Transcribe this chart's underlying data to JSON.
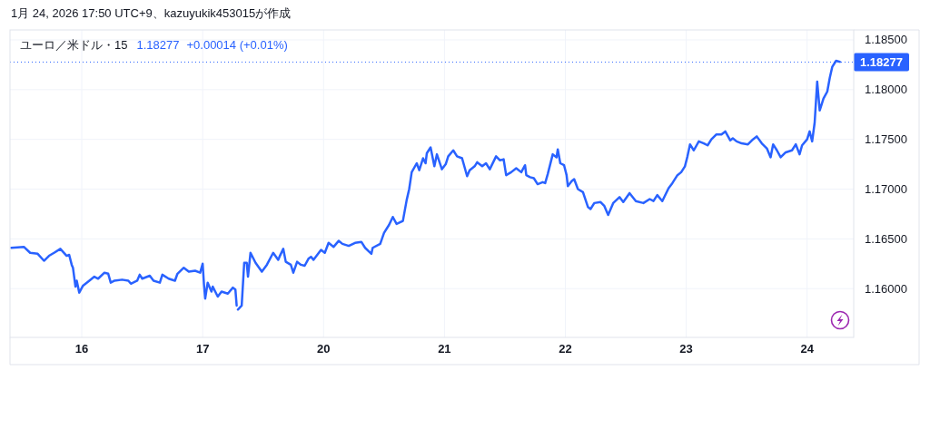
{
  "chart_data": [
    {
      "type": "line",
      "title": "1月 24, 2026 17:50 UTC+9、kazuyukik453015が作成",
      "subtitle": "ユーロ／米ドル・15",
      "annotations": [
        "1.18277",
        "+0.00014 (+0.01%)"
      ],
      "xlim": [
        "2026-01-15T09:45",
        "2026-01-17T07:00"
      ],
      "ylim": [
        1.1551,
        1.186
      ],
      "xticks": [
        {
          "value": "2026-01-16",
          "label": "16"
        },
        {
          "value": "2026-01-17",
          "label": "17"
        }
      ],
      "yticks": [
        {
          "value": 1.16,
          "label": null
        },
        {
          "value": 1.165,
          "label": null
        },
        {
          "value": 1.17,
          "label": null
        },
        {
          "value": 1.175,
          "label": null
        },
        {
          "value": 1.18,
          "label": null
        },
        {
          "value": 1.185,
          "label": null
        }
      ],
      "tick_labels": "x",
      "grid": true,
      "ref_lines": [
        {
          "axis": "y",
          "value": 1.18277,
          "color": "#2962ff",
          "line_style": "dotted"
        }
      ],
      "series": [
        {
          "color": "#2962ff",
          "x": [
            "2026-01-15T10:00",
            "2026-01-15T12:30",
            "2026-01-15T13:45",
            "2026-01-15T15:15",
            "2026-01-15T16:30",
            "2026-01-15T17:30",
            "2026-01-15T18:30",
            "2026-01-15T19:45",
            "2026-01-15T21:00",
            "2026-01-15T21:30",
            "2026-01-15T22:00",
            "2026-01-15T22:15",
            "2026-01-15T22:45",
            "2026-01-15T23:00",
            "2026-01-15T23:30",
            "2026-01-16T00:15",
            "2026-01-16T01:30",
            "2026-01-16T02:30",
            "2026-01-16T03:15",
            "2026-01-16T04:30",
            "2026-01-16T05:15",
            "2026-01-16T05:45",
            "2026-01-16T06:30",
            "2026-01-16T08:00",
            "2026-01-16T09:15",
            "2026-01-16T09:45",
            "2026-01-16T11:00",
            "2026-01-16T11:30",
            "2026-01-16T12:00",
            "2026-01-16T13:30",
            "2026-01-16T14:15",
            "2026-01-16T15:30",
            "2026-01-16T16:00",
            "2026-01-16T17:15",
            "2026-01-16T18:30",
            "2026-01-16T19:00",
            "2026-01-16T20:15",
            "2026-01-16T21:15",
            "2026-01-16T22:30",
            "2026-01-16T23:30",
            "2026-01-17T00:00",
            "2026-01-17T00:15",
            "2026-01-17T00:30",
            "2026-01-17T01:00",
            "2026-01-17T01:45",
            "2026-01-17T02:00",
            "2026-01-17T03:00",
            "2026-01-17T03:45",
            "2026-01-17T05:00",
            "2026-01-17T06:00",
            "2026-01-17T06:30",
            "2026-01-17T06:45"
          ],
          "values": [
            1.1641,
            1.1642,
            1.1636,
            1.1635,
            1.1628,
            1.1633,
            1.1636,
            1.164,
            1.1633,
            1.1634,
            1.1624,
            1.1621,
            1.1602,
            1.1608,
            1.1596,
            1.1603,
            1.1608,
            1.1612,
            1.161,
            1.1616,
            1.1615,
            1.1606,
            1.1608,
            1.1609,
            1.1608,
            1.1605,
            1.1608,
            1.1614,
            1.161,
            1.1613,
            1.1608,
            1.1606,
            1.1614,
            1.161,
            1.1608,
            1.1615,
            1.1621,
            1.1617,
            1.1618,
            1.1616,
            1.1625,
            1.1605,
            1.159,
            1.1606,
            1.1597,
            1.1602,
            1.1592,
            1.1597,
            1.1595,
            1.1601,
            1.1599,
            1.1583
          ]
        }
      ]
    },
    {
      "type": "line",
      "xlim": [
        "2026-01-19T07:00",
        "2026-01-24T09:15"
      ],
      "ylim": [
        1.1551,
        1.186
      ],
      "xticks": [
        {
          "value": "2026-01-20",
          "label": "20"
        },
        {
          "value": "2026-01-21",
          "label": "21"
        },
        {
          "value": "2026-01-22",
          "label": "22"
        },
        {
          "value": "2026-01-23",
          "label": "23"
        },
        {
          "value": "2026-01-24",
          "label": "24"
        }
      ],
      "yticks": [
        {
          "value": 1.16,
          "label": "1.16000"
        },
        {
          "value": 1.165,
          "label": "1.16500"
        },
        {
          "value": 1.17,
          "label": "1.17000"
        },
        {
          "value": 1.175,
          "label": "1.17500"
        },
        {
          "value": 1.18,
          "label": "1.18000"
        },
        {
          "value": 1.185,
          "label": "1.18500"
        }
      ],
      "grid": true,
      "ref_lines": [
        {
          "axis": "y",
          "value": 1.18277,
          "label": "1.18277",
          "color": "#2962ff",
          "line_style": "dotted"
        }
      ],
      "series": [
        {
          "color": "#2962ff",
          "x": [
            "2026-01-19T07:00",
            "2026-01-19T07:45",
            "2026-01-19T08:15",
            "2026-01-19T08:45",
            "2026-01-19T09:00",
            "2026-01-19T09:30",
            "2026-01-19T10:30",
            "2026-01-19T11:45",
            "2026-01-19T12:45",
            "2026-01-19T14:00",
            "2026-01-19T15:00",
            "2026-01-19T15:15",
            "2026-01-19T16:00",
            "2026-01-19T16:30",
            "2026-01-19T17:30",
            "2026-01-19T18:00",
            "2026-01-19T18:45",
            "2026-01-19T19:30",
            "2026-01-19T20:15",
            "2026-01-19T21:00",
            "2026-01-19T21:30",
            "2026-01-19T22:00",
            "2026-01-19T23:30",
            "2026-01-20T00:15",
            "2026-01-20T01:00",
            "2026-01-20T02:00",
            "2026-01-20T03:00",
            "2026-01-20T03:45",
            "2026-01-20T05:00",
            "2026-01-20T06:15",
            "2026-01-20T07:30",
            "2026-01-20T08:15",
            "2026-01-20T09:30",
            "2026-01-20T09:45",
            "2026-01-20T11:15",
            "2026-01-20T12:00",
            "2026-01-20T13:00",
            "2026-01-20T13:45",
            "2026-01-20T14:30",
            "2026-01-20T15:45",
            "2026-01-20T16:30",
            "2026-01-20T17:00",
            "2026-01-20T17:30",
            "2026-01-20T18:30",
            "2026-01-20T19:00",
            "2026-01-20T19:45",
            "2026-01-20T20:15",
            "2026-01-20T20:30",
            "2026-01-20T21:15",
            "2026-01-20T22:00",
            "2026-01-20T22:30",
            "2026-01-20T23:30",
            "2026-01-21T00:15",
            "2026-01-21T00:45",
            "2026-01-21T01:45",
            "2026-01-21T02:30",
            "2026-01-21T03:30",
            "2026-01-21T04:30",
            "2026-01-21T05:00",
            "2026-01-21T06:00",
            "2026-01-21T06:30",
            "2026-01-21T07:30",
            "2026-01-21T08:15",
            "2026-01-21T09:00",
            "2026-01-21T10:15",
            "2026-01-21T11:00",
            "2026-01-21T11:45",
            "2026-01-21T12:15",
            "2026-01-21T13:15",
            "2026-01-21T14:15",
            "2026-01-21T15:15",
            "2026-01-21T16:00",
            "2026-01-21T16:15",
            "2026-01-21T17:00",
            "2026-01-21T17:45",
            "2026-01-21T18:30",
            "2026-01-21T19:30",
            "2026-01-21T20:00",
            "2026-01-21T20:30",
            "2026-01-21T21:30",
            "2026-01-21T22:15",
            "2026-01-21T22:30",
            "2026-01-21T23:00",
            "2026-01-21T23:45",
            "2026-01-22T00:15",
            "2026-01-22T00:30",
            "2026-01-22T01:15",
            "2026-01-22T01:45",
            "2026-01-22T02:30",
            "2026-01-22T03:30",
            "2026-01-22T04:30",
            "2026-01-22T05:00",
            "2026-01-22T05:45",
            "2026-01-22T07:00",
            "2026-01-22T07:45",
            "2026-01-22T08:30",
            "2026-01-22T09:30",
            "2026-01-22T10:45",
            "2026-01-22T11:30",
            "2026-01-22T12:45",
            "2026-01-22T14:00",
            "2026-01-22T15:30",
            "2026-01-22T16:45",
            "2026-01-22T17:30",
            "2026-01-22T18:15",
            "2026-01-22T19:15",
            "2026-01-22T20:30",
            "2026-01-22T21:15",
            "2026-01-22T22:15",
            "2026-01-22T23:00",
            "2026-01-22T23:45",
            "2026-01-23T00:15",
            "2026-01-23T00:45",
            "2026-01-23T01:30",
            "2026-01-23T02:30",
            "2026-01-23T03:30",
            "2026-01-23T04:15",
            "2026-01-23T05:00",
            "2026-01-23T06:00",
            "2026-01-23T07:00",
            "2026-01-23T07:45",
            "2026-01-23T08:45",
            "2026-01-23T09:15",
            "2026-01-23T10:00",
            "2026-01-23T11:00",
            "2026-01-23T12:15",
            "2026-01-23T13:15",
            "2026-01-23T14:00",
            "2026-01-23T15:00",
            "2026-01-23T16:00",
            "2026-01-23T16:45",
            "2026-01-23T17:15",
            "2026-01-23T18:00",
            "2026-01-23T18:45",
            "2026-01-23T19:45",
            "2026-01-23T21:00",
            "2026-01-23T21:45",
            "2026-01-23T22:30",
            "2026-01-23T23:00",
            "2026-01-24T00:00",
            "2026-01-24T00:30",
            "2026-01-24T01:00",
            "2026-01-24T01:30",
            "2026-01-24T02:00",
            "2026-01-24T02:30",
            "2026-01-24T03:15",
            "2026-01-24T04:00",
            "2026-01-24T04:30",
            "2026-01-24T05:00",
            "2026-01-24T05:45",
            "2026-01-24T06:30"
          ],
          "values": [
            1.1579,
            1.1583,
            1.1626,
            1.1626,
            1.1612,
            1.1636,
            1.1626,
            1.1617,
            1.1624,
            1.1636,
            1.1629,
            1.1632,
            1.164,
            1.1627,
            1.1624,
            1.1616,
            1.1627,
            1.1624,
            1.1623,
            1.163,
            1.1632,
            1.1629,
            1.1639,
            1.1636,
            1.1646,
            1.1642,
            1.1648,
            1.1645,
            1.1643,
            1.1646,
            1.1647,
            1.1641,
            1.1635,
            1.1641,
            1.1645,
            1.1656,
            1.1664,
            1.1672,
            1.1665,
            1.1668,
            1.1689,
            1.17,
            1.1717,
            1.1726,
            1.1719,
            1.1731,
            1.1726,
            1.1736,
            1.1742,
            1.1723,
            1.1735,
            1.172,
            1.1725,
            1.1733,
            1.1739,
            1.1733,
            1.1731,
            1.1713,
            1.1719,
            1.1723,
            1.1727,
            1.1723,
            1.1726,
            1.172,
            1.1733,
            1.1729,
            1.173,
            1.1714,
            1.1717,
            1.1721,
            1.1717,
            1.1724,
            1.1714,
            1.1712,
            1.1711,
            1.1705,
            1.1707,
            1.1706,
            1.1715,
            1.1735,
            1.1732,
            1.174,
            1.1726,
            1.1724,
            1.1714,
            1.1703,
            1.1708,
            1.171,
            1.17,
            1.1697,
            1.1682,
            1.168,
            1.1686,
            1.1687,
            1.1683,
            1.1674,
            1.1686,
            1.1692,
            1.1687,
            1.1696,
            1.1688,
            1.1686,
            1.169,
            1.1688,
            1.1694,
            1.1688,
            1.1701,
            1.1706,
            1.1714,
            1.1717,
            1.1723,
            1.1733,
            1.1745,
            1.1739,
            1.1748,
            1.1746,
            1.1744,
            1.175,
            1.1755,
            1.1755,
            1.1758,
            1.1749,
            1.1751,
            1.1748,
            1.1746,
            1.1745,
            1.175,
            1.1753,
            1.1746,
            1.1741,
            1.1732,
            1.1745,
            1.1739,
            1.1732,
            1.1737,
            1.1739,
            1.1745,
            1.1735,
            1.1744,
            1.175,
            1.1758,
            1.1748,
            1.1767,
            1.1808,
            1.1779,
            1.1791,
            1.1798,
            1.1812,
            1.1823,
            1.1829,
            1.1828
          ]
        }
      ]
    }
  ]
}
